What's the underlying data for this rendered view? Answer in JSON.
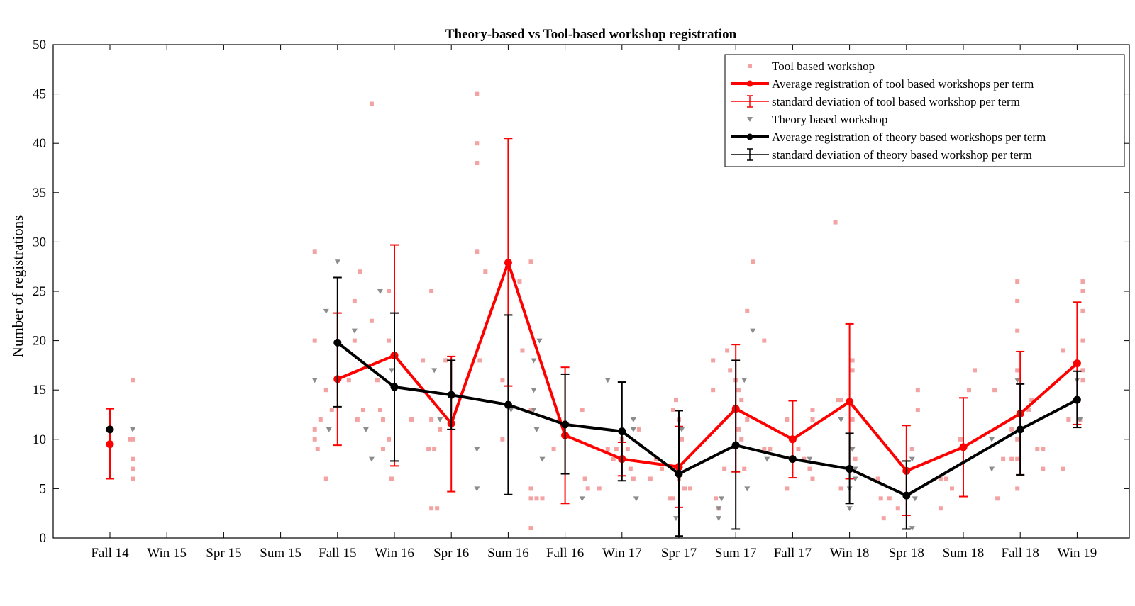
{
  "chart_data": {
    "type": "line",
    "title": "Theory-based vs Tool-based workshop registration",
    "xlabel": "",
    "ylabel": "Number of registrations",
    "categories": [
      "Fall 14",
      "Win 15",
      "Spr 15",
      "Sum 15",
      "Fall 15",
      "Win 16",
      "Spr 16",
      "Sum 16",
      "Fall 16",
      "Win 17",
      "Spr 17",
      "Sum 17",
      "Fall 17",
      "Win 18",
      "Spr 18",
      "Sum 18",
      "Fall 18",
      "Win 19"
    ],
    "ylim": [
      0,
      50
    ],
    "yticks": [
      0,
      5,
      10,
      15,
      20,
      25,
      30,
      35,
      40,
      45,
      50
    ],
    "grid": false,
    "legend_position": "top-right",
    "colors": {
      "tool_points": "#f4a3a3",
      "tool_line": "#ff0000",
      "theory_points": "#8c8c8c",
      "theory_line": "#000000"
    },
    "legend": [
      {
        "label": "Tool based workshop",
        "kind": "tool-points"
      },
      {
        "label": "Average registration of tool based workshops per term",
        "kind": "tool-line"
      },
      {
        "label": "standard deviation of tool based workshop per term",
        "kind": "tool-error"
      },
      {
        "label": "Theory based workshop",
        "kind": "theory-points"
      },
      {
        "label": "Average registration of theory based workshops per term",
        "kind": "theory-line"
      },
      {
        "label": "standard deviation of theory based workshop per term",
        "kind": "theory-error"
      }
    ],
    "series": [
      {
        "name": "Average registration of tool based workshops per term",
        "color": "#ff0000",
        "points": [
          {
            "x": 1,
            "mean": 9.5,
            "low": 6.0,
            "high": 13.1
          },
          {
            "x": 5,
            "mean": 16.1,
            "low": 9.4,
            "high": 22.8
          },
          {
            "x": 6,
            "mean": 18.5,
            "low": 7.3,
            "high": 29.7
          },
          {
            "x": 7,
            "mean": 11.6,
            "low": 4.7,
            "high": 18.4
          },
          {
            "x": 8,
            "mean": 27.9,
            "low": 15.4,
            "high": 40.5
          },
          {
            "x": 9,
            "mean": 10.4,
            "low": 3.5,
            "high": 17.3
          },
          {
            "x": 10,
            "mean": 8.0,
            "low": 6.3,
            "high": 9.7
          },
          {
            "x": 11,
            "mean": 7.2,
            "low": 3.1,
            "high": 11.3
          },
          {
            "x": 12,
            "mean": 13.1,
            "low": 6.7,
            "high": 19.6
          },
          {
            "x": 13,
            "mean": 10.0,
            "low": 6.1,
            "high": 13.9
          },
          {
            "x": 14,
            "mean": 13.8,
            "low": 6.0,
            "high": 21.7
          },
          {
            "x": 15,
            "mean": 6.8,
            "low": 2.3,
            "high": 11.4
          },
          {
            "x": 16,
            "mean": 9.2,
            "low": 4.2,
            "high": 14.2
          },
          {
            "x": 17,
            "mean": 12.6,
            "low": 6.4,
            "high": 18.9
          },
          {
            "x": 18,
            "mean": 17.7,
            "low": 11.5,
            "high": 23.9
          }
        ]
      },
      {
        "name": "Average registration of theory based workshops per term",
        "color": "#000000",
        "points": [
          {
            "x": 1,
            "mean": 11.0,
            "low": 11.0,
            "high": 11.0
          },
          {
            "x": 5,
            "mean": 19.8,
            "low": 13.3,
            "high": 26.4
          },
          {
            "x": 6,
            "mean": 15.3,
            "low": 7.8,
            "high": 22.8
          },
          {
            "x": 7,
            "mean": 14.5,
            "low": 11.0,
            "high": 18.0
          },
          {
            "x": 8,
            "mean": 13.5,
            "low": 4.4,
            "high": 22.6
          },
          {
            "x": 9,
            "mean": 11.5,
            "low": 6.5,
            "high": 16.6
          },
          {
            "x": 10,
            "mean": 10.8,
            "low": 5.8,
            "high": 15.8
          },
          {
            "x": 11,
            "mean": 6.5,
            "low": 0.2,
            "high": 12.9
          },
          {
            "x": 12,
            "mean": 9.4,
            "low": 0.9,
            "high": 18.0
          },
          {
            "x": 13,
            "mean": 8.0,
            "low": 8.0,
            "high": 8.0
          },
          {
            "x": 14,
            "mean": 7.0,
            "low": 3.5,
            "high": 10.6
          },
          {
            "x": 15,
            "mean": 4.3,
            "low": 0.9,
            "high": 7.8
          },
          {
            "x": 17,
            "mean": 11.0,
            "low": 6.4,
            "high": 15.6
          },
          {
            "x": 18,
            "mean": 14.0,
            "low": 11.2,
            "high": 16.9
          }
        ]
      }
    ],
    "scatter_tool": [
      [
        1.4,
        16
      ],
      [
        1.4,
        10
      ],
      [
        1.35,
        10
      ],
      [
        1.4,
        8
      ],
      [
        1.4,
        7
      ],
      [
        1.4,
        6
      ],
      [
        4.6,
        29
      ],
      [
        4.6,
        20
      ],
      [
        4.7,
        12
      ],
      [
        4.6,
        11
      ],
      [
        4.6,
        10
      ],
      [
        4.65,
        9
      ],
      [
        4.9,
        13
      ],
      [
        4.8,
        15
      ],
      [
        4.8,
        6
      ],
      [
        5.2,
        16
      ],
      [
        5.3,
        20
      ],
      [
        5.3,
        24
      ],
      [
        5.35,
        12
      ],
      [
        5.4,
        27
      ],
      [
        5.45,
        13
      ],
      [
        5.6,
        22
      ],
      [
        5.6,
        44
      ],
      [
        5.7,
        16
      ],
      [
        5.75,
        13
      ],
      [
        5.8,
        12
      ],
      [
        5.8,
        9
      ],
      [
        5.9,
        20
      ],
      [
        5.9,
        25
      ],
      [
        5.9,
        10
      ],
      [
        5.95,
        6
      ],
      [
        6.3,
        12
      ],
      [
        6.5,
        18
      ],
      [
        6.65,
        25
      ],
      [
        6.6,
        9
      ],
      [
        6.65,
        12
      ],
      [
        6.7,
        9
      ],
      [
        6.65,
        3
      ],
      [
        6.75,
        3
      ],
      [
        6.8,
        11
      ],
      [
        6.9,
        18
      ],
      [
        7.45,
        45
      ],
      [
        7.45,
        40
      ],
      [
        7.45,
        38
      ],
      [
        7.45,
        29
      ],
      [
        7.6,
        27
      ],
      [
        7.5,
        18
      ],
      [
        7.9,
        16
      ],
      [
        7.9,
        10
      ],
      [
        8.2,
        26
      ],
      [
        8.25,
        19
      ],
      [
        8.4,
        28
      ],
      [
        8.4,
        13
      ],
      [
        8.4,
        4
      ],
      [
        8.4,
        5
      ],
      [
        8.4,
        1
      ],
      [
        8.5,
        4
      ],
      [
        8.6,
        4
      ],
      [
        8.8,
        9
      ],
      [
        8.9,
        12
      ],
      [
        9.3,
        13
      ],
      [
        9.35,
        6
      ],
      [
        9.4,
        5
      ],
      [
        9.6,
        5
      ],
      [
        9.75,
        9
      ],
      [
        9.85,
        8
      ],
      [
        9.9,
        9
      ],
      [
        10.0,
        10
      ],
      [
        10.1,
        9
      ],
      [
        10.15,
        7
      ],
      [
        10.2,
        6
      ],
      [
        10.3,
        11
      ],
      [
        10.5,
        6
      ],
      [
        10.6,
        8
      ],
      [
        10.7,
        7
      ],
      [
        10.85,
        4
      ],
      [
        10.9,
        4
      ],
      [
        10.95,
        14
      ],
      [
        10.9,
        13
      ],
      [
        11.0,
        12
      ],
      [
        11.05,
        10
      ],
      [
        11.0,
        6
      ],
      [
        11.1,
        5
      ],
      [
        11.2,
        5
      ],
      [
        11.6,
        18
      ],
      [
        11.6,
        15
      ],
      [
        11.65,
        4
      ],
      [
        11.7,
        3
      ],
      [
        11.8,
        7
      ],
      [
        11.85,
        19
      ],
      [
        11.9,
        17
      ],
      [
        12.0,
        16
      ],
      [
        12.05,
        15
      ],
      [
        12.1,
        14
      ],
      [
        12.05,
        11
      ],
      [
        12.1,
        10
      ],
      [
        12.15,
        7
      ],
      [
        12.2,
        23
      ],
      [
        12.3,
        28
      ],
      [
        12.2,
        12
      ],
      [
        12.5,
        20
      ],
      [
        12.5,
        9
      ],
      [
        12.6,
        9
      ],
      [
        12.9,
        12
      ],
      [
        12.9,
        5
      ],
      [
        13.1,
        9
      ],
      [
        13.2,
        8
      ],
      [
        13.35,
        13
      ],
      [
        13.35,
        12
      ],
      [
        13.3,
        7
      ],
      [
        13.35,
        6
      ],
      [
        13.75,
        32
      ],
      [
        13.8,
        14
      ],
      [
        13.85,
        14
      ],
      [
        13.85,
        5
      ],
      [
        14.0,
        7
      ],
      [
        14.05,
        18
      ],
      [
        14.05,
        17
      ],
      [
        14.05,
        12
      ],
      [
        14.1,
        8
      ],
      [
        14.5,
        6
      ],
      [
        14.55,
        4
      ],
      [
        14.6,
        2
      ],
      [
        14.7,
        4
      ],
      [
        14.85,
        3
      ],
      [
        15.1,
        9
      ],
      [
        15.2,
        15
      ],
      [
        15.2,
        13
      ],
      [
        15.6,
        6
      ],
      [
        15.6,
        3
      ],
      [
        15.7,
        6
      ],
      [
        15.8,
        5
      ],
      [
        15.95,
        10
      ],
      [
        16.1,
        15
      ],
      [
        16.2,
        17
      ],
      [
        16.55,
        15
      ],
      [
        16.6,
        4
      ],
      [
        16.7,
        8
      ],
      [
        16.85,
        11
      ],
      [
        16.85,
        8
      ],
      [
        16.95,
        26
      ],
      [
        16.95,
        24
      ],
      [
        16.95,
        21
      ],
      [
        16.95,
        17
      ],
      [
        16.95,
        10
      ],
      [
        16.95,
        8
      ],
      [
        16.95,
        5
      ],
      [
        17.15,
        13
      ],
      [
        17.2,
        14
      ],
      [
        17.3,
        9
      ],
      [
        17.4,
        9
      ],
      [
        17.4,
        7
      ],
      [
        17.75,
        19
      ],
      [
        17.75,
        7
      ],
      [
        17.85,
        12
      ],
      [
        18.1,
        26
      ],
      [
        18.1,
        25
      ],
      [
        18.1,
        23
      ],
      [
        18.1,
        20
      ],
      [
        18.1,
        17
      ],
      [
        18.1,
        16
      ],
      [
        18.05,
        12
      ]
    ],
    "scatter_theory": [
      [
        1.4,
        11
      ],
      [
        4.6,
        16
      ],
      [
        4.8,
        23
      ],
      [
        4.85,
        11
      ],
      [
        5.0,
        28
      ],
      [
        5.3,
        21
      ],
      [
        5.5,
        11
      ],
      [
        5.6,
        8
      ],
      [
        5.75,
        25
      ],
      [
        5.95,
        17
      ],
      [
        6.7,
        17
      ],
      [
        6.8,
        12
      ],
      [
        7.45,
        9
      ],
      [
        7.45,
        5
      ],
      [
        8.05,
        13
      ],
      [
        8.45,
        18
      ],
      [
        8.45,
        15
      ],
      [
        8.45,
        13
      ],
      [
        8.5,
        11
      ],
      [
        8.6,
        8
      ],
      [
        8.55,
        20
      ],
      [
        9.3,
        4
      ],
      [
        9.75,
        16
      ],
      [
        10.0,
        8
      ],
      [
        10.2,
        11
      ],
      [
        10.2,
        12
      ],
      [
        10.25,
        4
      ],
      [
        10.95,
        2
      ],
      [
        11.05,
        11
      ],
      [
        11.7,
        3
      ],
      [
        11.7,
        2
      ],
      [
        11.75,
        4
      ],
      [
        12.15,
        16
      ],
      [
        12.2,
        5
      ],
      [
        12.3,
        21
      ],
      [
        12.55,
        8
      ],
      [
        13.3,
        8
      ],
      [
        13.85,
        12
      ],
      [
        14.05,
        9
      ],
      [
        14.1,
        7
      ],
      [
        14.0,
        5
      ],
      [
        14.0,
        3
      ],
      [
        14.1,
        6
      ],
      [
        15.1,
        8
      ],
      [
        15.15,
        4
      ],
      [
        15.1,
        1
      ],
      [
        16.5,
        10
      ],
      [
        16.5,
        7
      ],
      [
        16.95,
        16
      ],
      [
        18.05,
        12
      ],
      [
        18.0,
        16
      ]
    ]
  }
}
